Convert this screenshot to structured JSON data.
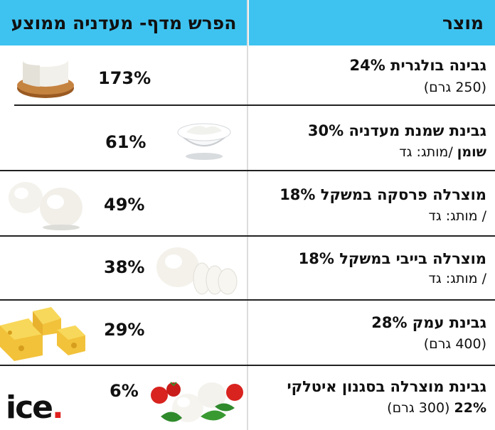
{
  "header": {
    "product_label": "מוצר",
    "diff_label": "הפרש מדף- מעדניה ממוצע"
  },
  "rows": [
    {
      "name": "גבינה בולגרית 24%",
      "sub": "(250 גרם)",
      "pct": "173%",
      "image_icon": "bulgarian-cheese-icon"
    },
    {
      "name": "גבינת שמנת מעדניה 30%",
      "sub_bold": "שומן",
      "sub": "/מותג: גד",
      "pct": "61%",
      "image_icon": "cream-cheese-bowl-icon"
    },
    {
      "name": "מוצרלה פרסקה במשקל 18%",
      "sub": "/ מותג: גד",
      "pct": "49%",
      "image_icon": "mozzarella-balls-icon"
    },
    {
      "name": "מוצרלה בייבי במשקל 18%",
      "sub": "/ מותג: גד",
      "pct": "38%",
      "image_icon": "sliced-mozzarella-icon"
    },
    {
      "name": "גבינת עמק 28%",
      "sub": "(400 גרם)",
      "pct": "29%",
      "image_icon": "yellow-cheese-cubes-icon"
    },
    {
      "name": "גבינת מוצרלה בסגנון איטלקי",
      "sub_bold": "22%",
      "sub": "(300 גרם)",
      "pct": "6%",
      "image_icon": "caprese-icon"
    }
  ],
  "logo": {
    "text": "ice",
    "dot": "."
  },
  "colors": {
    "header_bg": "#3ec3f0",
    "logo_dot": "#e0201f"
  }
}
